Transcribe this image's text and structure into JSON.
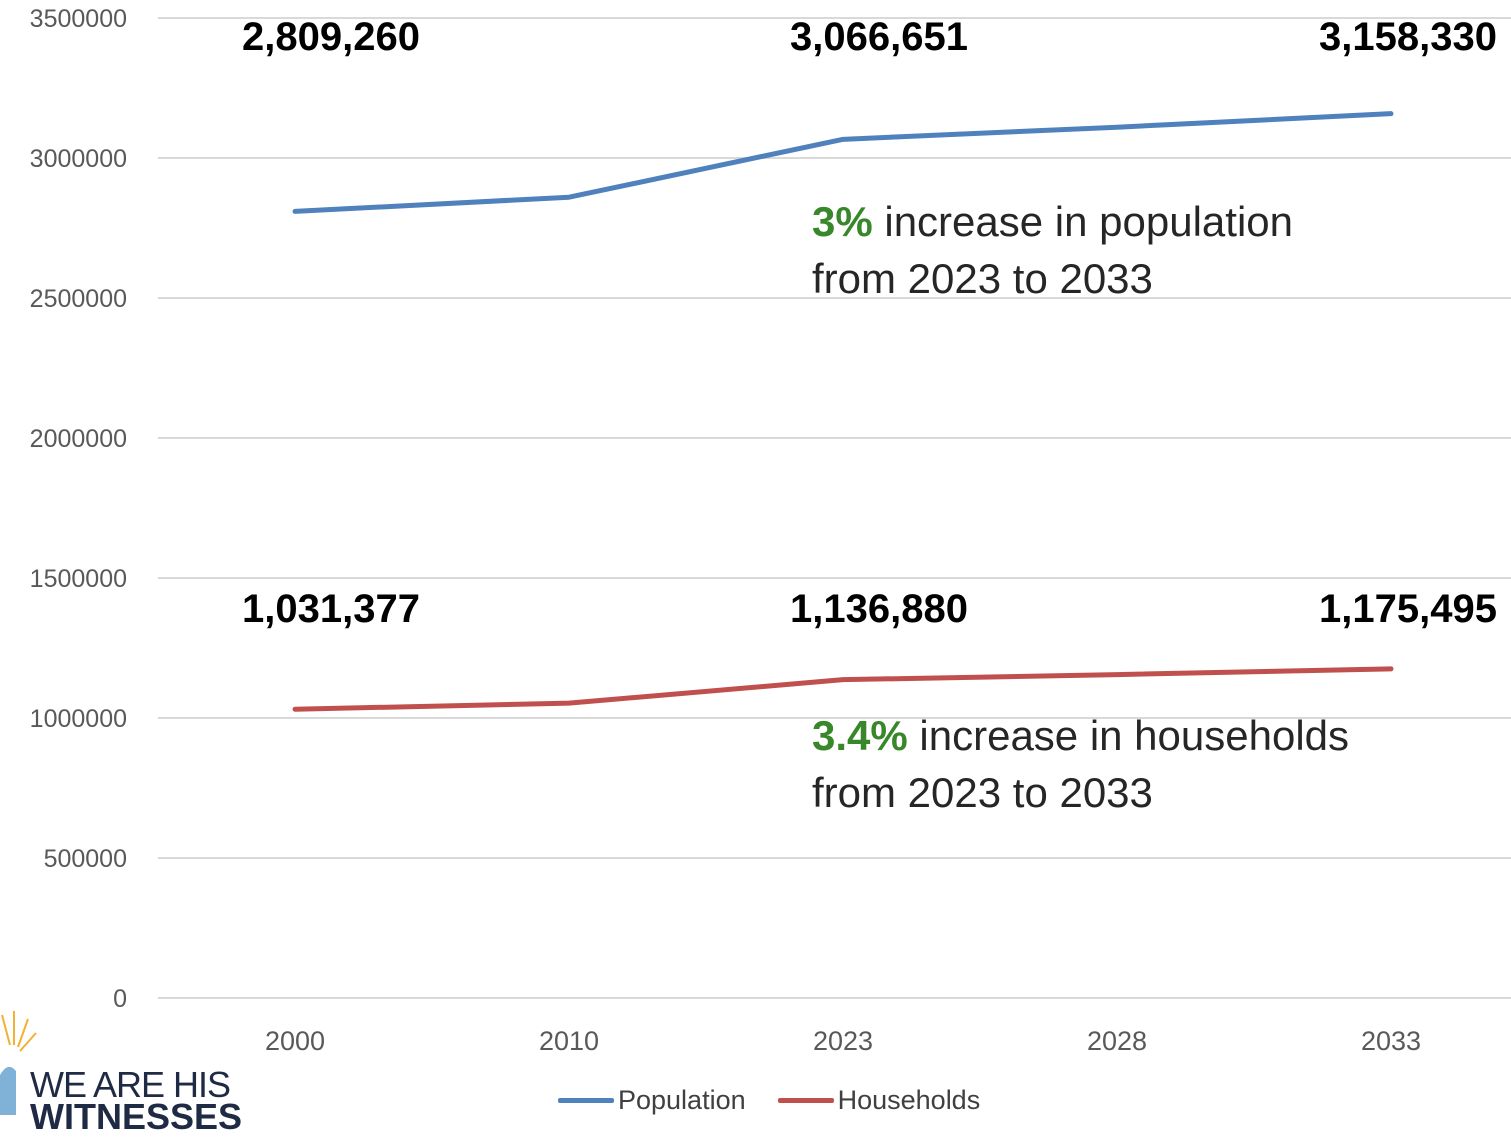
{
  "chart_data": {
    "type": "line",
    "categories": [
      "2000",
      "2010",
      "2023",
      "2028",
      "2033"
    ],
    "ylim": [
      0,
      3500000
    ],
    "yticks": [
      0,
      500000,
      1000000,
      1500000,
      2000000,
      2500000,
      3000000,
      3500000
    ],
    "grid": true,
    "legend_position": "bottom",
    "series": [
      {
        "name": "Population",
        "color": "#4f81bd",
        "values": [
          2809260,
          2860000,
          3066651,
          3110000,
          3158330
        ],
        "data_labels": [
          {
            "category": "2000",
            "text": "2,809,260"
          },
          {
            "category": "2023",
            "text": "3,066,651"
          },
          {
            "category": "2033",
            "text": "3,158,330"
          }
        ]
      },
      {
        "name": "Households",
        "color": "#c0504d",
        "values": [
          1031377,
          1053000,
          1136880,
          1155000,
          1175495
        ],
        "data_labels": [
          {
            "category": "2000",
            "text": "1,031,377"
          },
          {
            "category": "2023",
            "text": "1,136,880"
          },
          {
            "category": "2033",
            "text": "1,175,495"
          }
        ]
      }
    ],
    "annotations": [
      {
        "highlight": "3%",
        "line1_rest": " increase in population",
        "line2": "from 2023 to 2033"
      },
      {
        "highlight": "3.4%",
        "line1_rest": " increase in households",
        "line2": "from 2023 to 2033"
      }
    ]
  },
  "logo": {
    "line1": "WE ARE HIS",
    "line2": "WITNESSES"
  }
}
